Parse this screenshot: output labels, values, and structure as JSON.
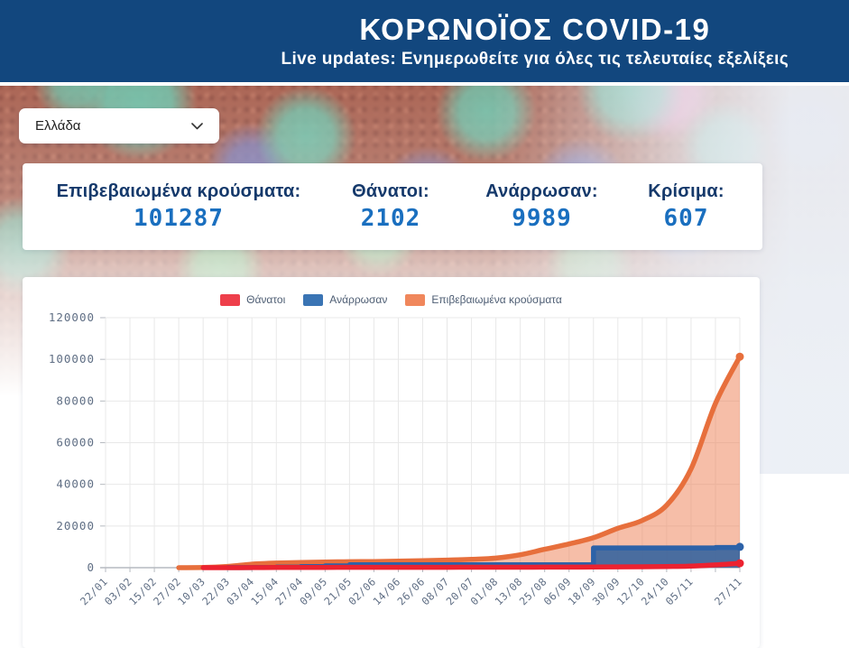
{
  "header": {
    "title": "ΚΟΡΩΝΟΪΟΣ COVID-19",
    "subtitle": "Live updates: Ενημερωθείτε για όλες τις τελευταίες εξελίξεις"
  },
  "country_selector": {
    "value": "Ελλάδα",
    "icon": "chevron-down"
  },
  "stats": {
    "items": [
      {
        "label": "Επιβεβαιωμένα κρούσματα:",
        "value": "101287"
      },
      {
        "label": "Θάνατοι:",
        "value": "2102"
      },
      {
        "label": "Ανάρρωσαν:",
        "value": "9989"
      },
      {
        "label": "Κρίσιμα:",
        "value": "607"
      }
    ]
  },
  "theme": {
    "header_bg": "#12477e",
    "stat_label_color": "#15396b",
    "stat_value_color": "#1a6fbf",
    "axis_text_color": "#5f6e84",
    "grid_color": "#e8e8e8",
    "axis_line_color": "#b6bac0"
  },
  "chart_data": {
    "type": "area",
    "title": "",
    "xlabel": "",
    "ylabel": "",
    "grid": true,
    "legend_position": "top",
    "ylim": [
      0,
      120000
    ],
    "yticks": [
      0,
      20000,
      40000,
      60000,
      80000,
      100000,
      120000
    ],
    "categories": [
      "22/01",
      "03/02",
      "15/02",
      "27/02",
      "10/03",
      "22/03",
      "03/04",
      "15/04",
      "27/04",
      "09/05",
      "21/05",
      "02/06",
      "14/06",
      "26/06",
      "08/07",
      "20/07",
      "01/08",
      "13/08",
      "25/08",
      "06/09",
      "18/09",
      "30/09",
      "12/10",
      "24/10",
      "05/11",
      "",
      "27/11"
    ],
    "series": [
      {
        "name": "Θάνατοι",
        "color": "#ec2230",
        "legend_color": "#ee3f4b",
        "interp": "smooth",
        "area": false,
        "values": [
          null,
          null,
          null,
          null,
          1,
          15,
          53,
          98,
          134,
          147,
          166,
          179,
          183,
          190,
          193,
          201,
          206,
          216,
          242,
          278,
          338,
          391,
          436,
          559,
          749,
          1347,
          2102
        ]
      },
      {
        "name": "Ανάρρωσαν",
        "color": "#2d62a8",
        "legend_color": "#3a74b4",
        "fill": "#40689e",
        "fill_opacity": 0.95,
        "interp": "step",
        "area": true,
        "values": [
          null,
          null,
          null,
          null,
          null,
          30,
          78,
          269,
          577,
          855,
          1374,
          1374,
          1374,
          1374,
          1374,
          1374,
          1374,
          1374,
          1374,
          1374,
          9500,
          9500,
          9500,
          9500,
          9500,
          9700,
          9989
        ]
      },
      {
        "name": "Επιβεβαιωμένα κρούσματα",
        "color": "#e76f3c",
        "legend_color": "#f0875c",
        "fill": "#ee7e52",
        "fill_opacity": 0.5,
        "interp": "smooth",
        "area": true,
        "values": [
          null,
          null,
          null,
          7,
          89,
          624,
          1673,
          2207,
          2534,
          2710,
          2853,
          2937,
          3112,
          3343,
          3622,
          4007,
          4587,
          6177,
          8819,
          11386,
          14400,
          18875,
          22652,
          29992,
          47400,
          78825,
          101287
        ]
      }
    ],
    "draw_order": [
      2,
      1,
      0
    ]
  }
}
